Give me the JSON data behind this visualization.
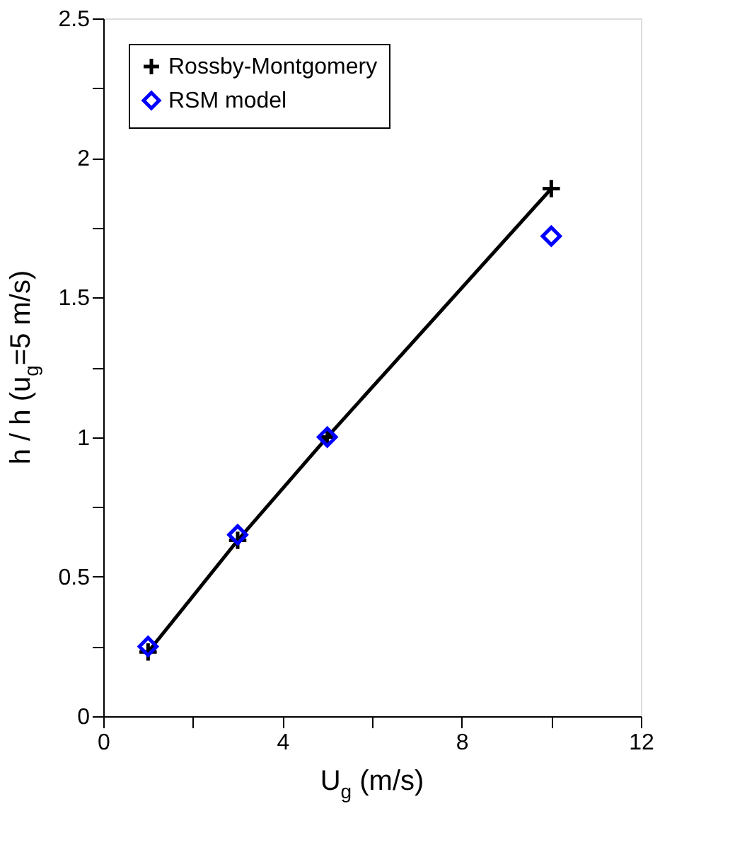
{
  "chart_data": {
    "type": "line",
    "xlabel": "U$_{g}$ (m/s)",
    "ylabel": "h / h (u$_{g}$=5 m/s)",
    "xlim": [
      0,
      12
    ],
    "ylim": [
      0,
      2.5
    ],
    "xticks": [
      0,
      {
        "value": 2,
        "label": null
      },
      4,
      {
        "value": 6,
        "label": null
      },
      8,
      {
        "value": 10,
        "label": null
      },
      12
    ],
    "yticks": [
      0,
      {
        "value": 0.25,
        "label": null
      },
      0.5,
      {
        "value": 0.75,
        "label": null
      },
      1,
      {
        "value": 1.25,
        "label": null
      },
      1.5,
      {
        "value": 1.75,
        "label": null
      },
      2,
      {
        "value": 2.25,
        "label": null
      },
      2.5
    ],
    "line_style": "solid",
    "grid": false,
    "legend": "top left",
    "series": [
      {
        "name": "Rossby-Montgomery",
        "color": "#000000",
        "marker": "cross",
        "x": [
          1,
          3,
          5,
          10
        ],
        "values": [
          0.23,
          0.63,
          1.0,
          1.89
        ]
      },
      {
        "name": "RSM model",
        "color": "#0000ff",
        "type": "scatter",
        "marker": "diamond",
        "x": [
          1,
          3,
          5,
          10
        ],
        "values": [
          0.25,
          0.65,
          1.0,
          1.72
        ]
      }
    ]
  }
}
